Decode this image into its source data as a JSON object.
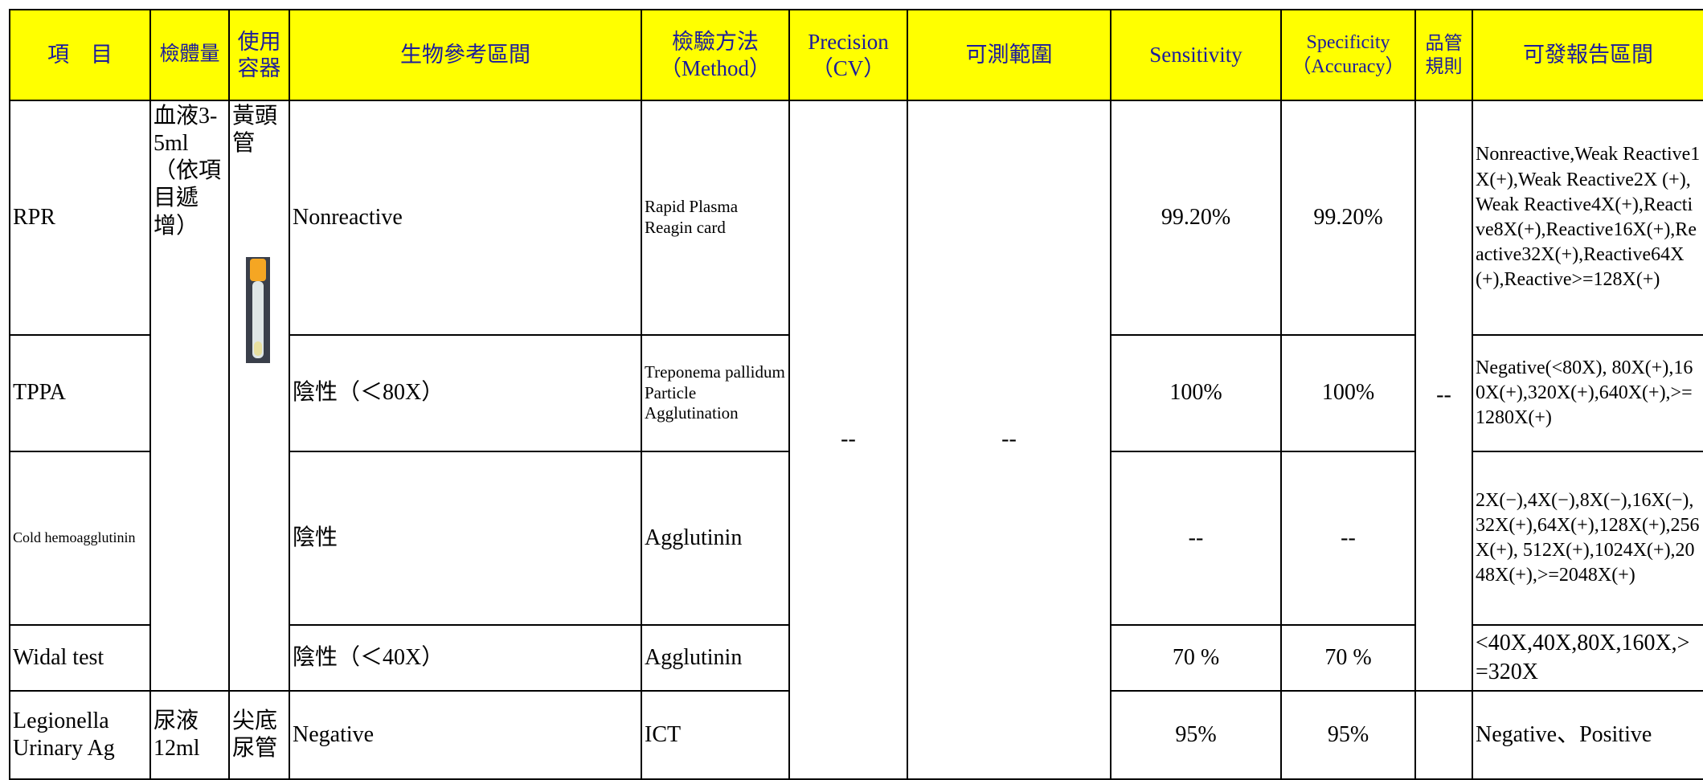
{
  "table": {
    "header": [
      "項　目",
      "檢體量",
      "使用容器",
      "生物參考區間",
      "檢驗方法（Method）",
      "Precision（CV）",
      "可測範圍",
      "Sensitivity",
      "Specificity（Accuracy）",
      "品管規則",
      "可發報告區間"
    ],
    "rows": [
      {
        "item": "RPR",
        "specimen": "血液3-5ml（依項目遞增）",
        "container": "黃頭管",
        "reference": "Nonreactive",
        "method": "Rapid Plasma Reagin card",
        "precision": "--",
        "range": "--",
        "sensitivity": "99.20%",
        "specificity": "99.20%",
        "qc": "--",
        "report": "Nonreactive,Weak Reactive1X(+),Weak Reactive2X (+),Weak Reactive4X(+),Reactive8X(+),Reactive16X(+),Reactive32X(+),Reactive64X(+),Reactive>=128X(+)"
      },
      {
        "item": "TPPA",
        "reference": "陰性（＜80X）",
        "method": "Treponema pallidum Particle Agglutination",
        "sensitivity": "100%",
        "specificity": "100%",
        "report": "Negative(<80X), 80X(+),160X(+),320X(+),640X(+),>=1280X(+)"
      },
      {
        "item": "Cold hemoagglutinin",
        "reference": "陰性",
        "method": "Agglutinin",
        "sensitivity": "--",
        "specificity": "--",
        "report": "2X(−),4X(−),8X(−),16X(−),32X(+),64X(+),128X(+),256X(+), 512X(+),1024X(+),2048X(+),>=2048X(+)"
      },
      {
        "item": "Widal test",
        "reference": "陰性（＜40X）",
        "method": "Agglutinin",
        "sensitivity": "70 %",
        "specificity": "70 %",
        "report": "<40X,40X,80X,160X,>=320X"
      },
      {
        "item": "Legionella Urinary Ag",
        "specimen": "尿液12ml",
        "container": "尖底尿管",
        "reference": "Negative",
        "method": "ICT",
        "sensitivity": "95%",
        "specificity": "95%",
        "report": "Negative、Positive"
      }
    ]
  }
}
